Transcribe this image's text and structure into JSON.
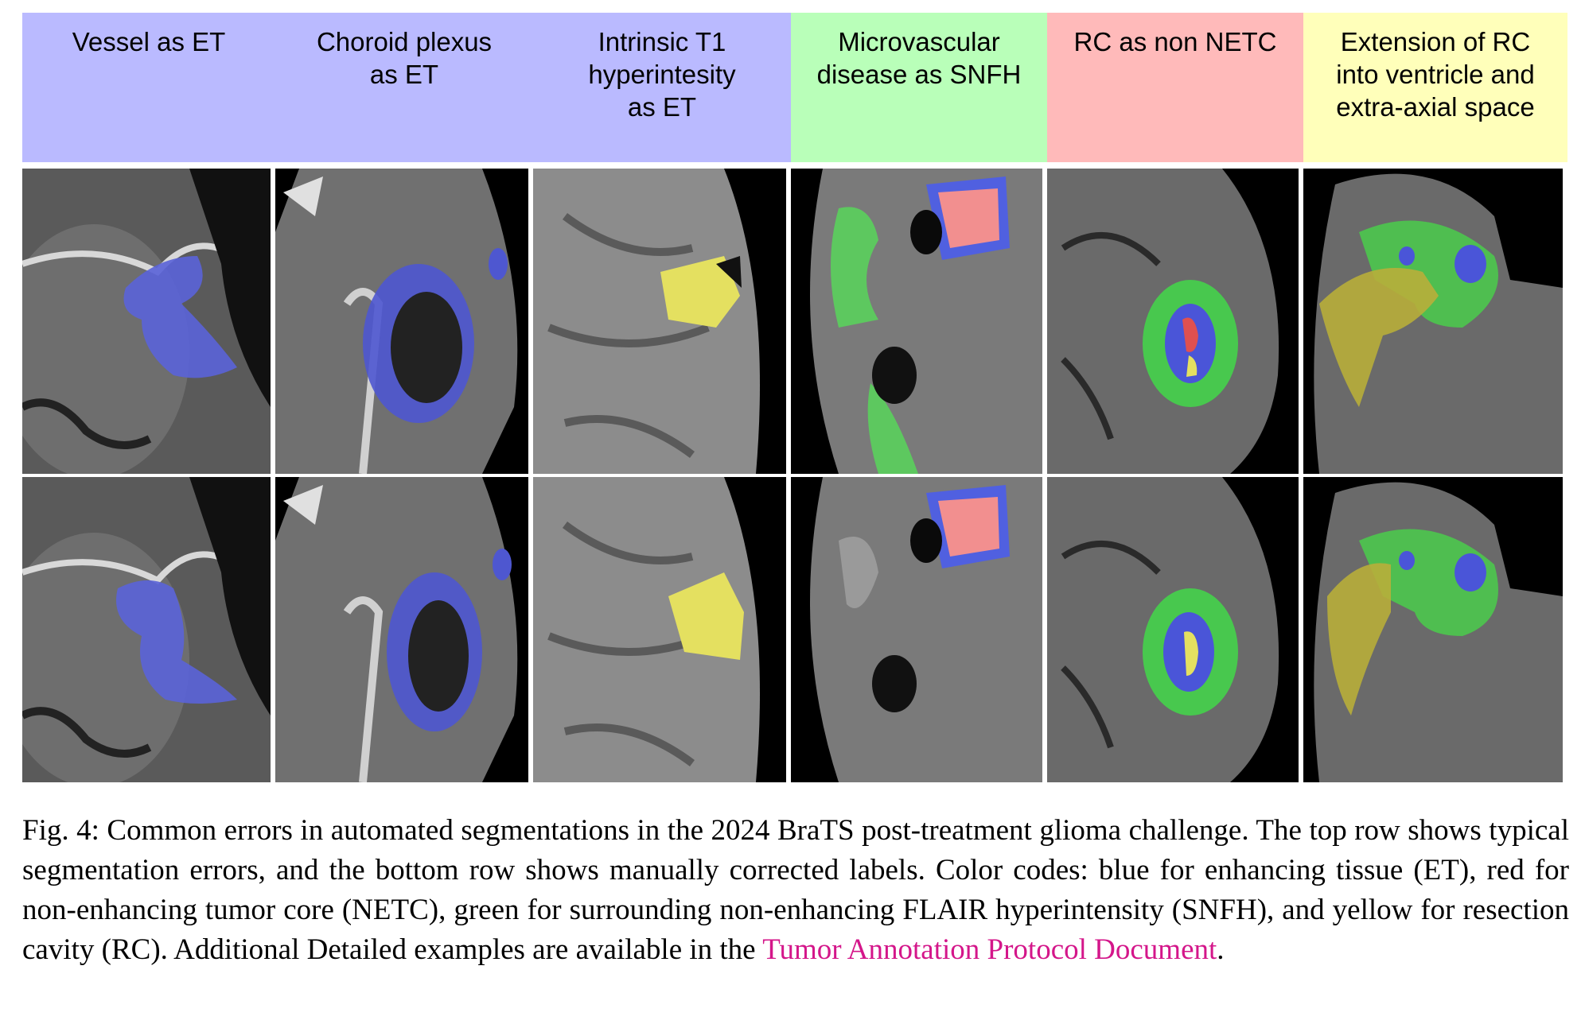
{
  "figure": {
    "columns": [
      {
        "label": "Vessel as ET",
        "color": "#babaff"
      },
      {
        "label": "Choroid plexus\nas ET",
        "color": "#babaff"
      },
      {
        "label": "Intrinsic T1\nhyperintesity\nas ET",
        "color": "#babaff"
      },
      {
        "label": "Microvascular\ndisease as SNFH",
        "color": "#b9ffb9"
      },
      {
        "label": "RC as non NETC",
        "color": "#ffbaba"
      },
      {
        "label": "Extension of RC\ninto ventricle and\nextra-axial space",
        "color": "#ffffba"
      }
    ],
    "rows": [
      "typical segmentation errors",
      "manually corrected labels"
    ],
    "label_colors": {
      "ET": "#4f5fe0",
      "NETC": "#f07a7a",
      "SNFH": "#3fd04a",
      "RC": "#e6e04a"
    }
  },
  "caption": {
    "prefix": "Fig. 4: Common errors in automated segmentations in the 2024 BraTS post-treatment glioma challenge. The top row shows typical segmentation errors, and the bottom row shows manually corrected labels. Color codes: blue for enhancing tissue (ET), red for non-enhancing tumor core (NETC), green for surrounding non-enhancing FLAIR hyperintensity (SNFH), and yellow for resection cavity (RC). Additional Detailed examples are available in the ",
    "link_text": "Tumor Annotation Protocol Document",
    "suffix": "."
  }
}
